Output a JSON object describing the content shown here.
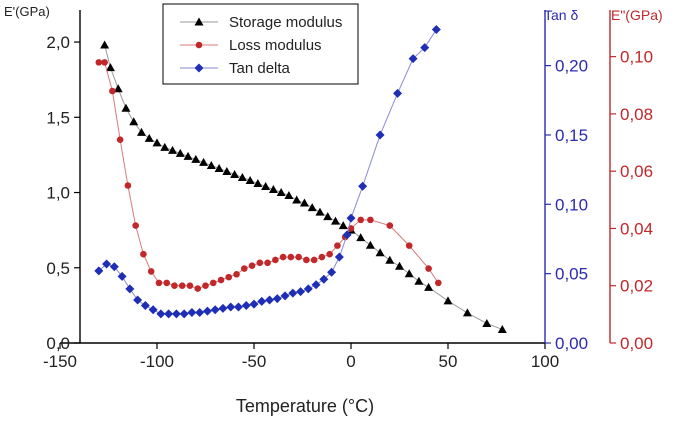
{
  "chart_data": {
    "type": "scatter",
    "xlabel": "Temperature (°C)",
    "xlim": [
      -150,
      100
    ],
    "x_ticks": [
      "-150",
      "-100",
      "-50",
      "0",
      "50",
      "100"
    ],
    "y_axes": [
      {
        "label": "E'(GPa)",
        "position": "left",
        "ylim": [
          0,
          2.1
        ],
        "ticks": [
          "0,0",
          "0,5",
          "1,0",
          "1,5",
          "2,0"
        ],
        "color": "#000000"
      },
      {
        "label": "Tan δ",
        "position": "right-inner",
        "ylim": [
          0,
          0.23
        ],
        "ticks": [
          "0,00",
          "0,05",
          "0,10",
          "0,15",
          "0,20"
        ],
        "color": "#2b2bb0"
      },
      {
        "label": "E\"(GPa)",
        "position": "right-outer",
        "ylim": [
          0,
          0.11
        ],
        "ticks": [
          "0,00",
          "0,02",
          "0,04",
          "0,06",
          "0,08",
          "0,10"
        ],
        "color": "#c0282a"
      }
    ],
    "legend": {
      "placement": "top-center",
      "entries": [
        "Storage modulus",
        "Loss modulus",
        "Tan delta"
      ]
    },
    "series": [
      {
        "name": "Storage modulus",
        "axis": 0,
        "marker": "triangle",
        "color": "#000000",
        "x": [
          -127,
          -124,
          -120,
          -116,
          -112,
          -108,
          -104,
          -100,
          -96,
          -92,
          -88,
          -84,
          -80,
          -76,
          -72,
          -68,
          -64,
          -60,
          -56,
          -52,
          -48,
          -44,
          -40,
          -36,
          -32,
          -28,
          -24,
          -20,
          -16,
          -12,
          -8,
          -4,
          0,
          5,
          10,
          15,
          20,
          25,
          30,
          35,
          40,
          50,
          60,
          70,
          78
        ],
        "y": [
          1.98,
          1.83,
          1.69,
          1.56,
          1.47,
          1.4,
          1.36,
          1.33,
          1.3,
          1.28,
          1.26,
          1.24,
          1.22,
          1.2,
          1.18,
          1.16,
          1.14,
          1.12,
          1.1,
          1.08,
          1.06,
          1.04,
          1.02,
          1.0,
          0.98,
          0.95,
          0.93,
          0.9,
          0.87,
          0.84,
          0.81,
          0.78,
          0.75,
          0.7,
          0.65,
          0.6,
          0.55,
          0.51,
          0.46,
          0.41,
          0.37,
          0.28,
          0.2,
          0.13,
          0.09
        ]
      },
      {
        "name": "Loss modulus",
        "axis": 2,
        "marker": "circle",
        "color": "#c0282a",
        "x": [
          -130,
          -127,
          -123,
          -119,
          -115,
          -111,
          -107,
          -103,
          -99,
          -95,
          -91,
          -87,
          -83,
          -79,
          -75,
          -71,
          -67,
          -63,
          -59,
          -55,
          -51,
          -47,
          -43,
          -39,
          -35,
          -31,
          -27,
          -23,
          -19,
          -15,
          -11,
          -7,
          -3,
          0,
          5,
          10,
          20,
          30,
          40,
          45
        ],
        "y": [
          0.098,
          0.098,
          0.088,
          0.071,
          0.055,
          0.041,
          0.031,
          0.025,
          0.021,
          0.021,
          0.02,
          0.02,
          0.02,
          0.019,
          0.02,
          0.021,
          0.022,
          0.023,
          0.024,
          0.026,
          0.027,
          0.028,
          0.028,
          0.029,
          0.03,
          0.03,
          0.03,
          0.029,
          0.029,
          0.03,
          0.031,
          0.034,
          0.037,
          0.04,
          0.043,
          0.043,
          0.041,
          0.034,
          0.026,
          0.021
        ]
      },
      {
        "name": "Tan delta",
        "axis": 1,
        "marker": "diamond",
        "color": "#1f2fb5",
        "x": [
          -130,
          -126,
          -122,
          -118,
          -114,
          -110,
          -106,
          -102,
          -98,
          -94,
          -90,
          -86,
          -82,
          -78,
          -74,
          -70,
          -66,
          -62,
          -58,
          -54,
          -50,
          -46,
          -42,
          -38,
          -34,
          -30,
          -26,
          -22,
          -18,
          -14,
          -10,
          -6,
          -2,
          0,
          6,
          15,
          24,
          32,
          38,
          44
        ],
        "y": [
          0.052,
          0.057,
          0.055,
          0.048,
          0.039,
          0.031,
          0.027,
          0.024,
          0.021,
          0.021,
          0.021,
          0.021,
          0.022,
          0.022,
          0.023,
          0.024,
          0.025,
          0.026,
          0.026,
          0.027,
          0.028,
          0.03,
          0.031,
          0.032,
          0.034,
          0.036,
          0.037,
          0.039,
          0.042,
          0.046,
          0.051,
          0.062,
          0.078,
          0.09,
          0.113,
          0.15,
          0.18,
          0.205,
          0.213,
          0.226
        ]
      }
    ]
  }
}
